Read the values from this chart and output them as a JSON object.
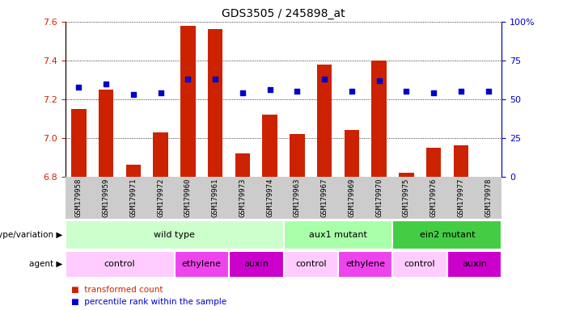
{
  "title": "GDS3505 / 245898_at",
  "samples": [
    "GSM179958",
    "GSM179959",
    "GSM179971",
    "GSM179972",
    "GSM179960",
    "GSM179961",
    "GSM179973",
    "GSM179974",
    "GSM179963",
    "GSM179967",
    "GSM179969",
    "GSM179970",
    "GSM179975",
    "GSM179976",
    "GSM179977",
    "GSM179978"
  ],
  "bar_values": [
    7.15,
    7.25,
    6.86,
    7.03,
    7.58,
    7.56,
    6.92,
    7.12,
    7.02,
    7.38,
    7.04,
    7.4,
    6.82,
    6.95,
    6.96,
    6.8
  ],
  "dot_values": [
    58,
    60,
    53,
    54,
    63,
    63,
    54,
    56,
    55,
    63,
    55,
    62,
    55,
    54,
    55,
    55
  ],
  "bar_base": 6.8,
  "ylim_left": [
    6.8,
    7.6
  ],
  "ylim_right": [
    0,
    100
  ],
  "yticks_left": [
    6.8,
    7.0,
    7.2,
    7.4,
    7.6
  ],
  "yticks_right": [
    0,
    25,
    50,
    75,
    100
  ],
  "ytick_labels_right": [
    "0",
    "25",
    "50",
    "75",
    "100%"
  ],
  "bar_color": "#cc2200",
  "dot_color": "#0000cc",
  "groups": [
    {
      "label": "wild type",
      "start": 0,
      "end": 8,
      "color": "#ccffcc"
    },
    {
      "label": "aux1 mutant",
      "start": 8,
      "end": 12,
      "color": "#aaffaa"
    },
    {
      "label": "ein2 mutant",
      "start": 12,
      "end": 16,
      "color": "#44cc44"
    }
  ],
  "agents": [
    {
      "label": "control",
      "start": 0,
      "end": 4,
      "color": "#ffccff"
    },
    {
      "label": "ethylene",
      "start": 4,
      "end": 6,
      "color": "#ee44ee"
    },
    {
      "label": "auxin",
      "start": 6,
      "end": 8,
      "color": "#cc00cc"
    },
    {
      "label": "control",
      "start": 8,
      "end": 10,
      "color": "#ffccff"
    },
    {
      "label": "ethylene",
      "start": 10,
      "end": 12,
      "color": "#ee44ee"
    },
    {
      "label": "control",
      "start": 12,
      "end": 14,
      "color": "#ffccff"
    },
    {
      "label": "auxin",
      "start": 14,
      "end": 16,
      "color": "#cc00cc"
    }
  ],
  "legend_items": [
    {
      "label": "transformed count",
      "color": "#cc2200"
    },
    {
      "label": "percentile rank within the sample",
      "color": "#0000cc"
    }
  ],
  "genotype_label": "genotype/variation",
  "agent_label": "agent",
  "tick_color_left": "#cc2200",
  "tick_color_right": "#0000cc",
  "bg_color": "#ffffff",
  "sample_bg_color": "#cccccc",
  "bar_width": 0.55
}
